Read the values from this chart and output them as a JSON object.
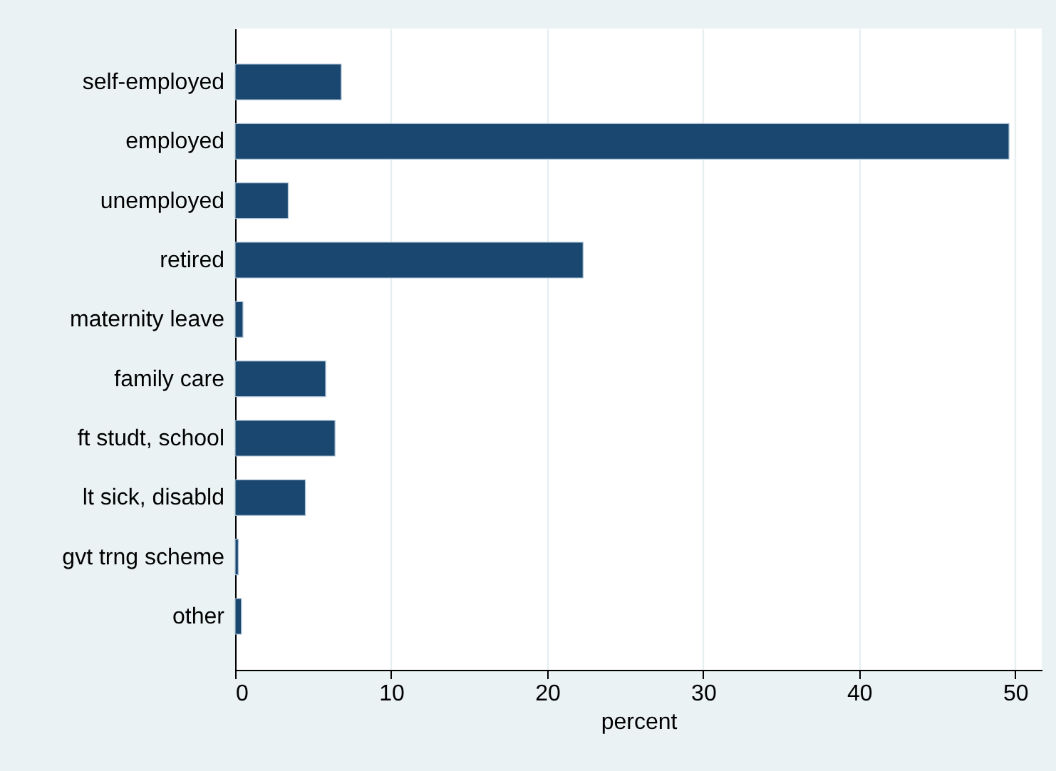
{
  "chart_data": {
    "type": "bar",
    "orientation": "horizontal",
    "xlabel": "percent",
    "categories": [
      "self-employed",
      "employed",
      "unemployed",
      "retired",
      "maternity leave",
      "family care",
      "ft studt, school",
      "lt sick, disabld",
      "gvt trng scheme",
      "other"
    ],
    "values": [
      6.8,
      49.6,
      3.4,
      22.3,
      0.5,
      5.8,
      6.4,
      4.5,
      0.2,
      0.4
    ],
    "color": "#1a476f",
    "xlim": [
      0,
      51.7
    ],
    "xticks": [
      0,
      10,
      20,
      30,
      40,
      50
    ],
    "grid": "x"
  }
}
